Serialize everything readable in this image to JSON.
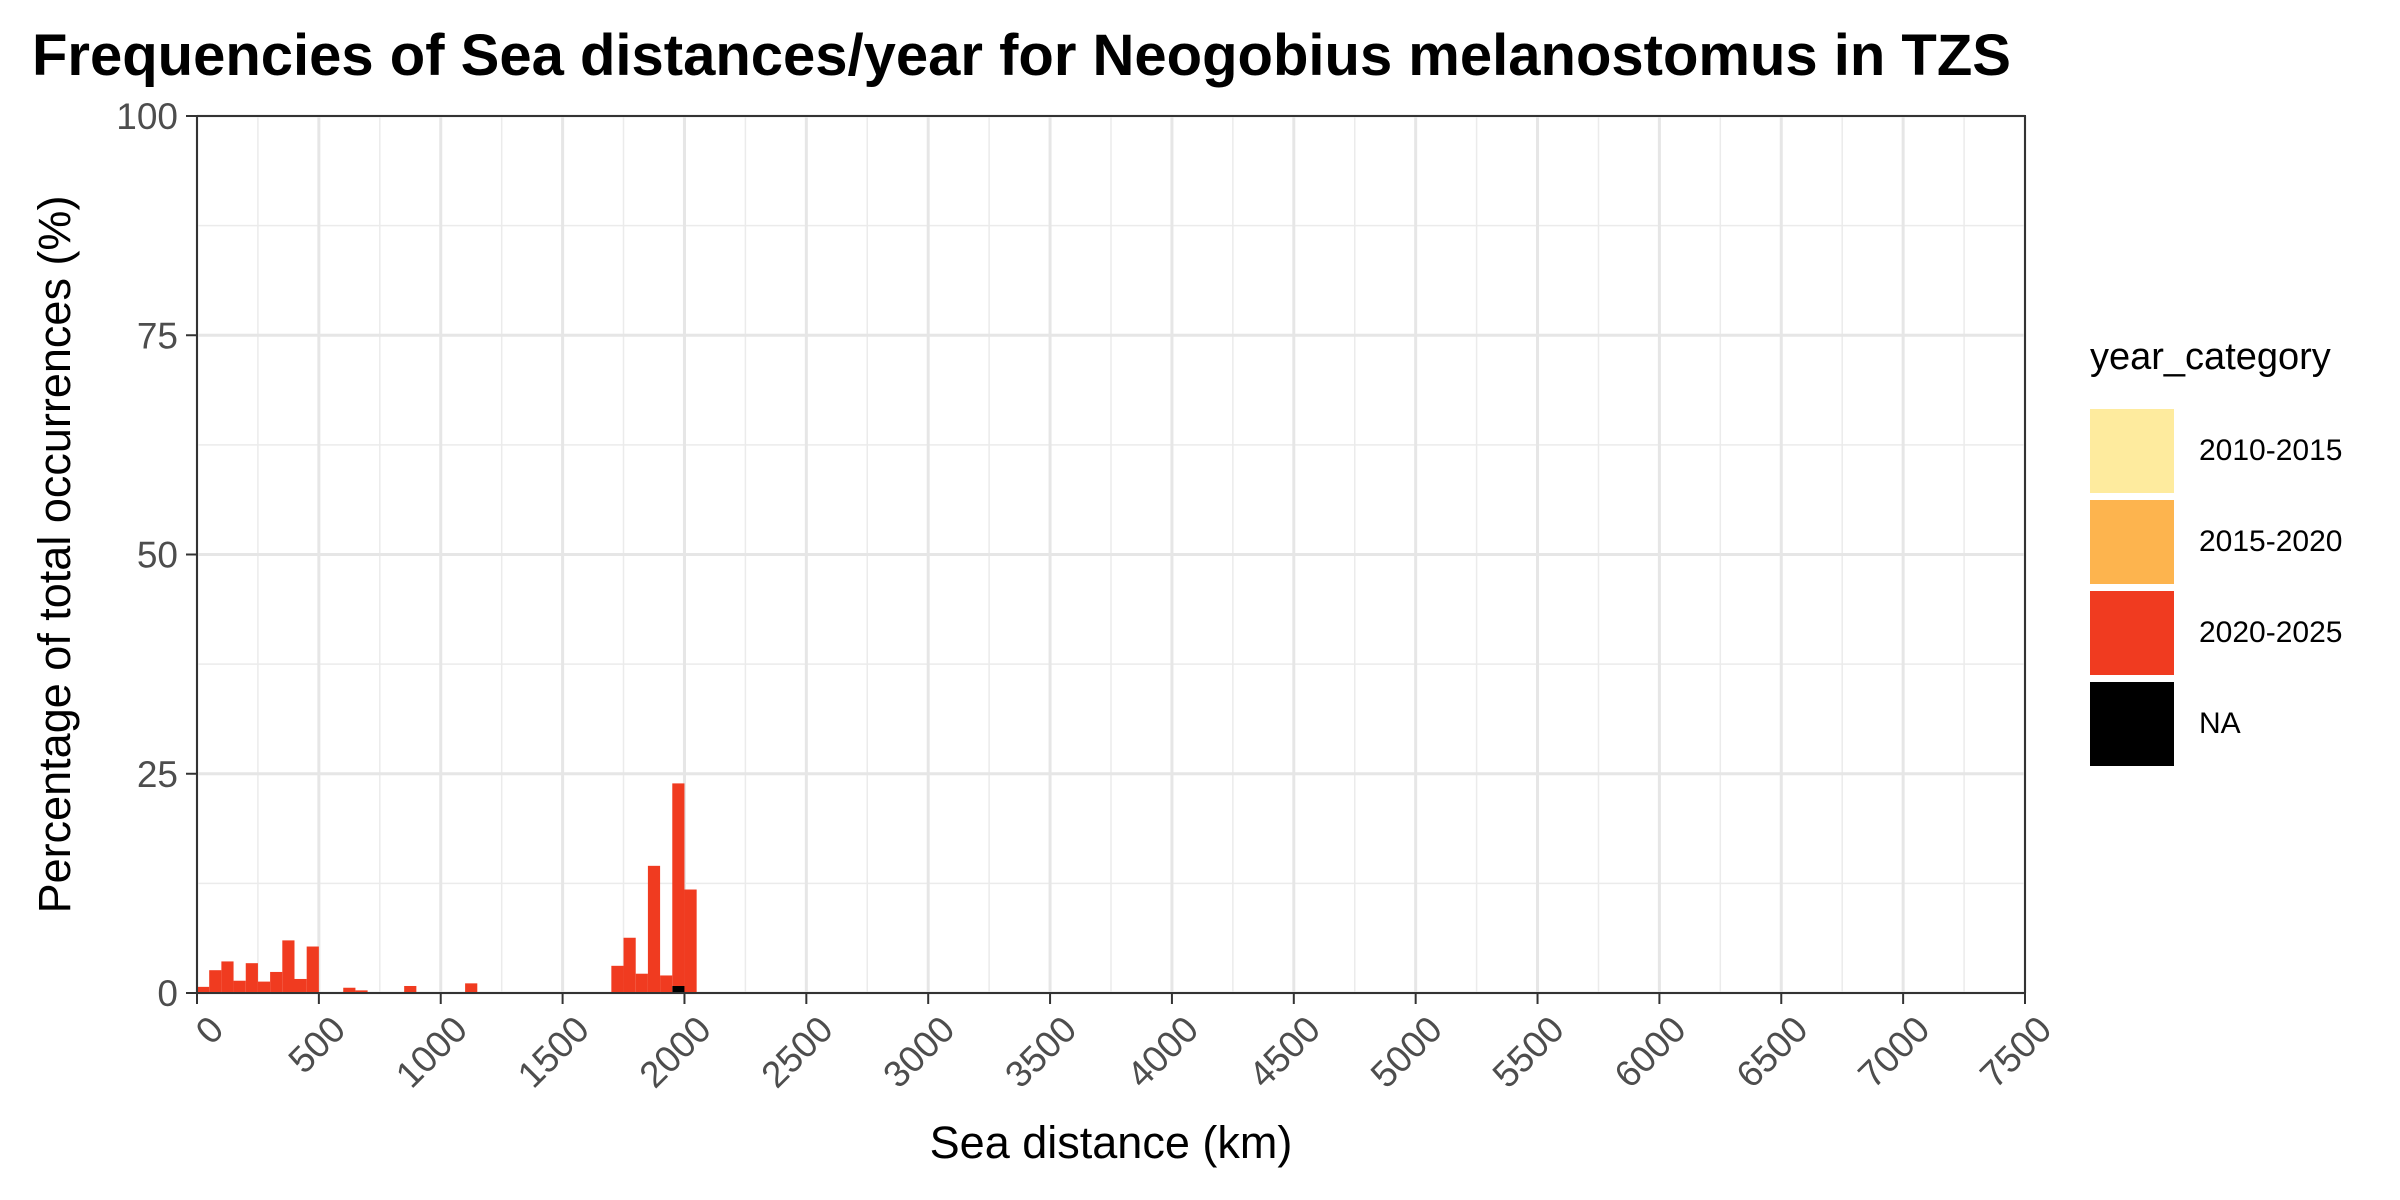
{
  "chart_data": {
    "type": "bar",
    "title": "Frequencies of Sea distances/year for Neogobius melanostomus in TZS",
    "xlabel": "Sea distance (km)",
    "ylabel": "Percentage of total occurrences (%)",
    "xlim": [
      0,
      7500
    ],
    "ylim": [
      0,
      100
    ],
    "x_ticks": [
      "0",
      "500",
      "1000",
      "1500",
      "2000",
      "2500",
      "3000",
      "3500",
      "4000",
      "4500",
      "5000",
      "5500",
      "6000",
      "6500",
      "7000",
      "7500"
    ],
    "y_ticks": [
      "0",
      "25",
      "50",
      "75",
      "100"
    ],
    "bin_width": 50,
    "grid": true,
    "stacked": true,
    "legend_position": "right",
    "legend_title": "year_category",
    "series": [
      {
        "name": "2010-2015",
        "color": "#FEEB9E",
        "bins": []
      },
      {
        "name": "2015-2020",
        "color": "#FDB44E",
        "bins": []
      },
      {
        "name": "2020-2025",
        "color": "#F03B20",
        "bins": [
          {
            "x0": 0,
            "value": 0.7
          },
          {
            "x0": 50,
            "value": 2.6
          },
          {
            "x0": 100,
            "value": 3.6
          },
          {
            "x0": 150,
            "value": 1.4
          },
          {
            "x0": 200,
            "value": 3.4
          },
          {
            "x0": 250,
            "value": 1.3
          },
          {
            "x0": 300,
            "value": 2.4
          },
          {
            "x0": 350,
            "value": 6.0
          },
          {
            "x0": 400,
            "value": 1.6
          },
          {
            "x0": 450,
            "value": 5.3
          },
          {
            "x0": 600,
            "value": 0.6
          },
          {
            "x0": 650,
            "value": 0.3
          },
          {
            "x0": 850,
            "value": 0.8
          },
          {
            "x0": 1100,
            "value": 1.1
          },
          {
            "x0": 1700,
            "value": 3.1
          },
          {
            "x0": 1750,
            "value": 6.3
          },
          {
            "x0": 1800,
            "value": 2.2
          },
          {
            "x0": 1850,
            "value": 14.5
          },
          {
            "x0": 1900,
            "value": 2.0
          },
          {
            "x0": 1950,
            "value": 23.1
          },
          {
            "x0": 2000,
            "value": 11.8
          }
        ]
      },
      {
        "name": "NA",
        "color": "#000000",
        "bins": [
          {
            "x0": 1950,
            "value": 0.8
          }
        ]
      }
    ]
  }
}
